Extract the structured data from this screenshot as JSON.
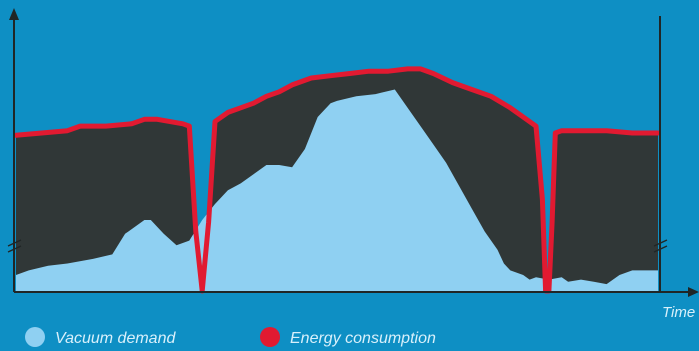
{
  "chart_data": {
    "type": "area",
    "title": "",
    "xlabel": "Time",
    "ylabel": "",
    "xlim": [
      0,
      100
    ],
    "ylim": [
      0,
      100
    ],
    "grid": false,
    "legend_placement": "bottom-left",
    "series": [
      {
        "name": "Vacuum demand",
        "color": "#8fd0f2",
        "kind": "area",
        "x": [
          0,
          2,
          5,
          8,
          12,
          15,
          17,
          20,
          21,
          23,
          25,
          27,
          29,
          31,
          33,
          35,
          37,
          39,
          41,
          43,
          45,
          47,
          49,
          50,
          53,
          56,
          59,
          61,
          63,
          65,
          67,
          69,
          71,
          73,
          75,
          76,
          77,
          79,
          80,
          81,
          83,
          85,
          86,
          88,
          90,
          92,
          94,
          96,
          98,
          100
        ],
        "y": [
          7,
          9,
          11,
          12,
          14,
          16,
          25,
          31,
          31,
          25,
          20,
          22,
          31,
          38,
          44,
          47,
          51,
          55,
          55,
          54,
          62,
          76,
          82,
          83,
          85,
          86,
          88,
          80,
          72,
          64,
          56,
          46,
          36,
          26,
          18,
          12,
          9,
          7,
          5,
          6,
          5,
          6,
          4,
          5,
          4,
          3,
          7,
          9,
          9,
          9
        ]
      },
      {
        "name": "Energy consumption",
        "color": "#e11a31",
        "kind": "line",
        "x": [
          0,
          4,
          8,
          10,
          14,
          18,
          20,
          22,
          26,
          27,
          28,
          29,
          30,
          31,
          33,
          35,
          37,
          39,
          41,
          43,
          46,
          49,
          52,
          55,
          58,
          61,
          63,
          65,
          68,
          71,
          74,
          77,
          81,
          82,
          82.5,
          83,
          83.5,
          84,
          85,
          88,
          92,
          96,
          100
        ],
        "y": [
          68,
          69,
          70,
          72,
          72,
          73,
          75,
          75,
          73,
          72,
          26,
          0,
          30,
          74,
          78,
          80,
          82,
          85,
          87,
          90,
          93,
          94,
          95,
          96,
          96,
          97,
          97,
          95,
          91,
          88,
          85,
          80,
          72,
          40,
          0,
          0,
          30,
          69,
          70,
          70,
          70,
          69,
          69
        ]
      }
    ],
    "legend": [
      {
        "label": "Vacuum demand",
        "color": "#8fd0f2"
      },
      {
        "label": "Energy consumption",
        "color": "#e11a31"
      }
    ],
    "annotations": {
      "axis_break_marks": true
    }
  }
}
